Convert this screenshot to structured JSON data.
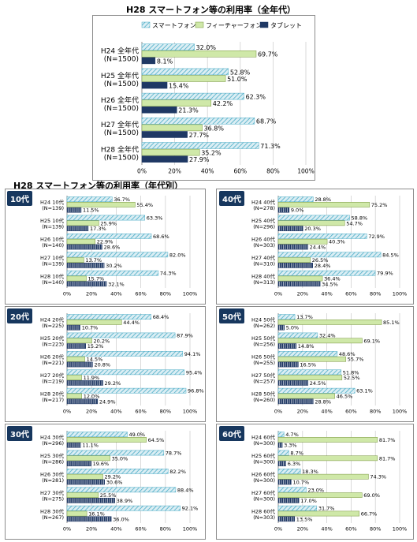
{
  "main_title": "H28 スマートフォン等の利用率（全年代）",
  "sub_title": "H28 スマートフォン等の利用率（年代別）",
  "colors": {
    "smartphone": "#4bacc6",
    "smartphone_fill": "#dbeef4",
    "feature": "#cfe8a8",
    "feature_stroke": "#77933c",
    "tablet": "#1f3864",
    "tag_bg": "#17375e"
  },
  "chart_data": [
    {
      "type": "bar",
      "orientation": "horizontal",
      "title": "H28 スマートフォン等の利用率（全年代）",
      "legend": [
        "スマートフォン",
        "フィーチャーフォン",
        "タブレット"
      ],
      "legend_position": "top",
      "xlim": [
        0,
        100
      ],
      "xticks": [
        "0%",
        "20%",
        "40%",
        "60%",
        "80%",
        "100%"
      ],
      "categories": [
        [
          "H24 全年代",
          "(N=1500)"
        ],
        [
          "H25 全年代",
          "(N=1500)"
        ],
        [
          "H26 全年代",
          "(N=1500)"
        ],
        [
          "H27 全年代",
          "(N=1500)"
        ],
        [
          "H28 全年代",
          "(N=1500)"
        ]
      ],
      "series": [
        {
          "name": "スマートフォン",
          "values": [
            32.0,
            52.8,
            62.3,
            68.7,
            71.3
          ],
          "labels": [
            "32.0%",
            "52.8%",
            "62.3%",
            "68.7%",
            "71.3%"
          ]
        },
        {
          "name": "フィーチャーフォン",
          "values": [
            69.7,
            51.0,
            42.2,
            36.8,
            35.2
          ],
          "labels": [
            "69.7%",
            "51.0%",
            "42.2%",
            "36.8%",
            "35.2%"
          ]
        },
        {
          "name": "タブレット",
          "values": [
            8.1,
            15.4,
            21.3,
            27.7,
            27.9
          ],
          "labels": [
            "8.1%",
            "15.4%",
            "21.3%",
            "27.7%",
            "27.9%"
          ]
        }
      ]
    },
    {
      "type": "bar",
      "orientation": "horizontal",
      "group_label": "10代",
      "xlim": [
        0,
        100
      ],
      "xticks": [
        "0%",
        "20%",
        "40%",
        "60%",
        "80%",
        "100%"
      ],
      "categories": [
        [
          "H24 10代",
          "(N=139)"
        ],
        [
          "H25 10代",
          "(N=139)"
        ],
        [
          "H26 10代",
          "(N=140)"
        ],
        [
          "H27 10代",
          "(N=139)"
        ],
        [
          "H28 10代",
          "(N=140)"
        ]
      ],
      "series": [
        {
          "values": [
            36.7,
            63.3,
            68.6,
            82.0,
            74.3
          ],
          "labels": [
            "36.7%",
            "63.3%",
            "68.6%",
            "82.0%",
            "74.3%"
          ]
        },
        {
          "values": [
            55.4,
            25.9,
            22.9,
            13.7,
            15.7
          ],
          "labels": [
            "55.4%",
            "25.9%",
            "22.9%",
            "13.7%",
            "15.7%"
          ]
        },
        {
          "values": [
            11.5,
            17.3,
            28.6,
            30.2,
            32.1
          ],
          "labels": [
            "11.5%",
            "17.3%",
            "28.6%",
            "30.2%",
            "32.1%"
          ]
        }
      ]
    },
    {
      "type": "bar",
      "orientation": "horizontal",
      "group_label": "40代",
      "xlim": [
        0,
        100
      ],
      "xticks": [
        "0%",
        "20%",
        "40%",
        "60%",
        "80%",
        "100%"
      ],
      "categories": [
        [
          "H24 40代",
          "(N=278)"
        ],
        [
          "H25 40代",
          "(N=296)"
        ],
        [
          "H26 40代",
          "(N=303)"
        ],
        [
          "H27 40代",
          "(N=310)"
        ],
        [
          "H28 40代",
          "(N=313)"
        ]
      ],
      "series": [
        {
          "values": [
            28.8,
            58.8,
            72.9,
            84.5,
            79.9
          ],
          "labels": [
            "28.8%",
            "58.8%",
            "72.9%",
            "84.5%",
            "79.9%"
          ]
        },
        {
          "values": [
            75.2,
            54.7,
            40.3,
            26.5,
            36.4
          ],
          "labels": [
            "75.2%",
            "54.7%",
            "40.3%",
            "26.5%",
            "36.4%"
          ]
        },
        {
          "values": [
            9.0,
            20.3,
            24.4,
            28.4,
            34.5
          ],
          "labels": [
            "9.0%",
            "20.3%",
            "24.4%",
            "28.4%",
            "34.5%"
          ]
        }
      ]
    },
    {
      "type": "bar",
      "orientation": "horizontal",
      "group_label": "20代",
      "xlim": [
        0,
        100
      ],
      "xticks": [
        "0%",
        "20%",
        "40%",
        "60%",
        "80%",
        "100%"
      ],
      "categories": [
        [
          "H24 20代",
          "(N=225)"
        ],
        [
          "H25 20代",
          "(N=223)"
        ],
        [
          "H26 20代",
          "(N=221)"
        ],
        [
          "H27 20代",
          "(N=219)"
        ],
        [
          "H28 20代",
          "(N=217)"
        ]
      ],
      "series": [
        {
          "values": [
            68.4,
            87.9,
            94.1,
            95.4,
            96.8
          ],
          "labels": [
            "68.4%",
            "87.9%",
            "94.1%",
            "95.4%",
            "96.8%"
          ]
        },
        {
          "values": [
            44.4,
            20.2,
            14.5,
            11.9,
            12.0
          ],
          "labels": [
            "44.4%",
            "20.2%",
            "14.5%",
            "11.9%",
            "12.0%"
          ]
        },
        {
          "values": [
            10.7,
            15.2,
            20.8,
            29.2,
            24.9
          ],
          "labels": [
            "10.7%",
            "15.2%",
            "20.8%",
            "29.2%",
            "24.9%"
          ]
        }
      ]
    },
    {
      "type": "bar",
      "orientation": "horizontal",
      "group_label": "50代",
      "xlim": [
        0,
        100
      ],
      "xticks": [
        "0%",
        "20%",
        "40%",
        "60%",
        "80%",
        "100%"
      ],
      "categories": [
        [
          "H24 50代",
          "(N=262)"
        ],
        [
          "H25 50代",
          "(N=256)"
        ],
        [
          "H26 50代",
          "(N=255)"
        ],
        [
          "H27 50代",
          "(N=257)"
        ],
        [
          "H28 50代",
          "(N=260)"
        ]
      ],
      "series": [
        {
          "values": [
            13.7,
            32.4,
            48.6,
            51.8,
            63.1
          ],
          "labels": [
            "13.7%",
            "32.4%",
            "48.6%",
            "51.8%",
            "63.1%"
          ]
        },
        {
          "values": [
            85.1,
            69.1,
            55.7,
            52.5,
            46.5
          ],
          "labels": [
            "85.1%",
            "69.1%",
            "55.7%",
            "52.5%",
            "46.5%"
          ]
        },
        {
          "values": [
            5.0,
            14.8,
            16.5,
            24.5,
            28.8
          ],
          "labels": [
            "5.0%",
            "14.8%",
            "16.5%",
            "24.5%",
            "28.8%"
          ]
        }
      ]
    },
    {
      "type": "bar",
      "orientation": "horizontal",
      "group_label": "30代",
      "xlim": [
        0,
        100
      ],
      "xticks": [
        "0%",
        "20%",
        "40%",
        "60%",
        "80%",
        "100%"
      ],
      "categories": [
        [
          "H24 30代",
          "(N=296)"
        ],
        [
          "H25 30代",
          "(N=286)"
        ],
        [
          "H26 30代",
          "(N=281)"
        ],
        [
          "H27 30代",
          "(N=275)"
        ],
        [
          "H28 30代",
          "(N=267)"
        ]
      ],
      "series": [
        {
          "values": [
            49.0,
            78.7,
            82.2,
            88.4,
            92.1
          ],
          "labels": [
            "49.0%",
            "78.7%",
            "82.2%",
            "88.4%",
            "92.1%"
          ]
        },
        {
          "values": [
            64.5,
            35.0,
            29.2,
            25.5,
            16.1
          ],
          "labels": [
            "64.5%",
            "35.0%",
            "29.2%",
            "25.5%",
            "16.1%"
          ]
        },
        {
          "values": [
            11.1,
            19.6,
            30.6,
            38.9,
            36.0
          ],
          "labels": [
            "11.1%",
            "19.6%",
            "30.6%",
            "38.9%",
            "36.0%"
          ]
        }
      ]
    },
    {
      "type": "bar",
      "orientation": "horizontal",
      "group_label": "60代",
      "xlim": [
        0,
        100
      ],
      "xticks": [
        "0%",
        "20%",
        "40%",
        "60%",
        "80%",
        "100%"
      ],
      "categories": [
        [
          "H24 60代",
          "(N=300)"
        ],
        [
          "H25 60代",
          "(N=300)"
        ],
        [
          "H26 60代",
          "(N=300)"
        ],
        [
          "H27 60代",
          "(N=300)"
        ],
        [
          "H28 60代",
          "(N=303)"
        ]
      ],
      "series": [
        {
          "values": [
            4.7,
            8.7,
            18.3,
            23.0,
            31.7
          ],
          "labels": [
            "4.7%",
            "8.7%",
            "18.3%",
            "23.0%",
            "31.7%"
          ]
        },
        {
          "values": [
            81.7,
            81.7,
            74.3,
            69.0,
            66.7
          ],
          "labels": [
            "81.7%",
            "81.7%",
            "74.3%",
            "69.0%",
            "66.7%"
          ]
        },
        {
          "values": [
            3.3,
            6.3,
            10.7,
            17.0,
            13.5
          ],
          "labels": [
            "3.3%",
            "6.3%",
            "10.7%",
            "17.0%",
            "13.5%"
          ]
        }
      ]
    }
  ]
}
